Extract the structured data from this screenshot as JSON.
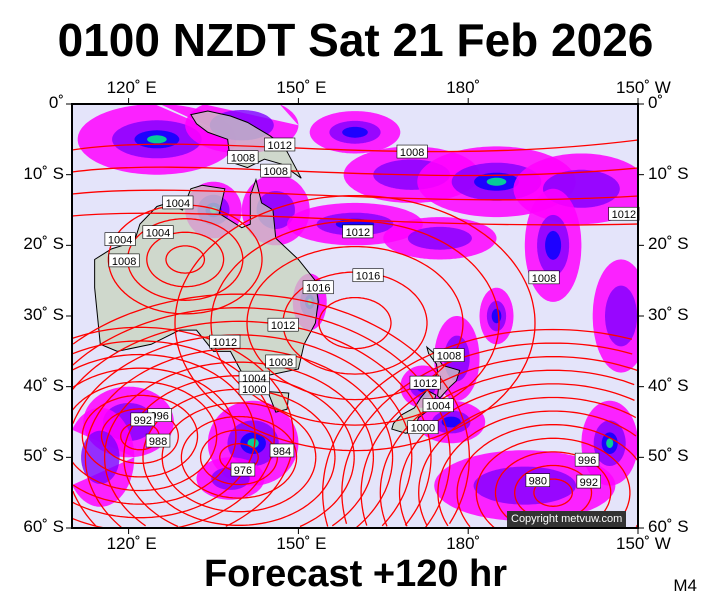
{
  "header": {
    "title": "0100 NZDT Sat 21 Feb 2026"
  },
  "footer": {
    "forecast": "Forecast +120 hr",
    "model": "M4",
    "copyright": "Copyright metvuw.com"
  },
  "axes": {
    "lon_labels": [
      "120˚ E",
      "150˚ E",
      "180˚",
      "150˚ W"
    ],
    "lat_labels": [
      "0˚",
      "10˚ S",
      "20˚ S",
      "30˚ S",
      "40˚ S",
      "50˚ S",
      "60˚ S"
    ],
    "lon_values": [
      120,
      150,
      180,
      210
    ],
    "lat_values": [
      0,
      -10,
      -20,
      -30,
      -40,
      -50,
      -60
    ],
    "lon_range": [
      110,
      210
    ],
    "lat_range": [
      0,
      -60
    ]
  },
  "colors": {
    "ocean": "#e4e4fa",
    "land": "#c8d4bc",
    "isobar": "#ff0000",
    "rain_light": "#ff00ff",
    "rain_mid": "#8000ff",
    "rain_heavy": "#0000ff",
    "rain_extreme": "#00ff80"
  },
  "isobar_labels": [
    {
      "value": "1012",
      "lon": 146.7,
      "lat": -5.8
    },
    {
      "value": "1008",
      "lon": 140.2,
      "lat": -7.6
    },
    {
      "value": "1008",
      "lon": 146.0,
      "lat": -9.5
    },
    {
      "value": "1008",
      "lon": 170.1,
      "lat": -6.8
    },
    {
      "value": "1004",
      "lon": 128.7,
      "lat": -14.0
    },
    {
      "value": "1004",
      "lon": 118.5,
      "lat": -19.2
    },
    {
      "value": "1004",
      "lon": 125.2,
      "lat": -18.2
    },
    {
      "value": "1008",
      "lon": 119.2,
      "lat": -22.2
    },
    {
      "value": "1012",
      "lon": 160.5,
      "lat": -18.1
    },
    {
      "value": "1016",
      "lon": 162.3,
      "lat": -24.3
    },
    {
      "value": "1016",
      "lon": 153.5,
      "lat": -26.0
    },
    {
      "value": "1012",
      "lon": 207.5,
      "lat": -15.6
    },
    {
      "value": "1008",
      "lon": 193.4,
      "lat": -24.6
    },
    {
      "value": "1012",
      "lon": 147.3,
      "lat": -31.3
    },
    {
      "value": "1012",
      "lon": 137.0,
      "lat": -33.7
    },
    {
      "value": "1008",
      "lon": 146.9,
      "lat": -36.5
    },
    {
      "value": "1004",
      "lon": 142.2,
      "lat": -38.8
    },
    {
      "value": "1000",
      "lon": 142.2,
      "lat": -40.3
    },
    {
      "value": "1008",
      "lon": 176.6,
      "lat": -35.6
    },
    {
      "value": "1012",
      "lon": 172.4,
      "lat": -39.5
    },
    {
      "value": "1004",
      "lon": 174.7,
      "lat": -42.7
    },
    {
      "value": "1000",
      "lon": 172.0,
      "lat": -45.8
    },
    {
      "value": "996",
      "lon": 125.5,
      "lat": -44.1
    },
    {
      "value": "992",
      "lon": 122.5,
      "lat": -44.7
    },
    {
      "value": "988",
      "lon": 125.2,
      "lat": -47.7
    },
    {
      "value": "984",
      "lon": 147.1,
      "lat": -49.1
    },
    {
      "value": "976",
      "lon": 140.2,
      "lat": -51.8
    },
    {
      "value": "980",
      "lon": 192.3,
      "lat": -53.3
    },
    {
      "value": "992",
      "lon": 201.3,
      "lat": -53.5
    },
    {
      "value": "996",
      "lon": 201.0,
      "lat": -50.4
    }
  ]
}
